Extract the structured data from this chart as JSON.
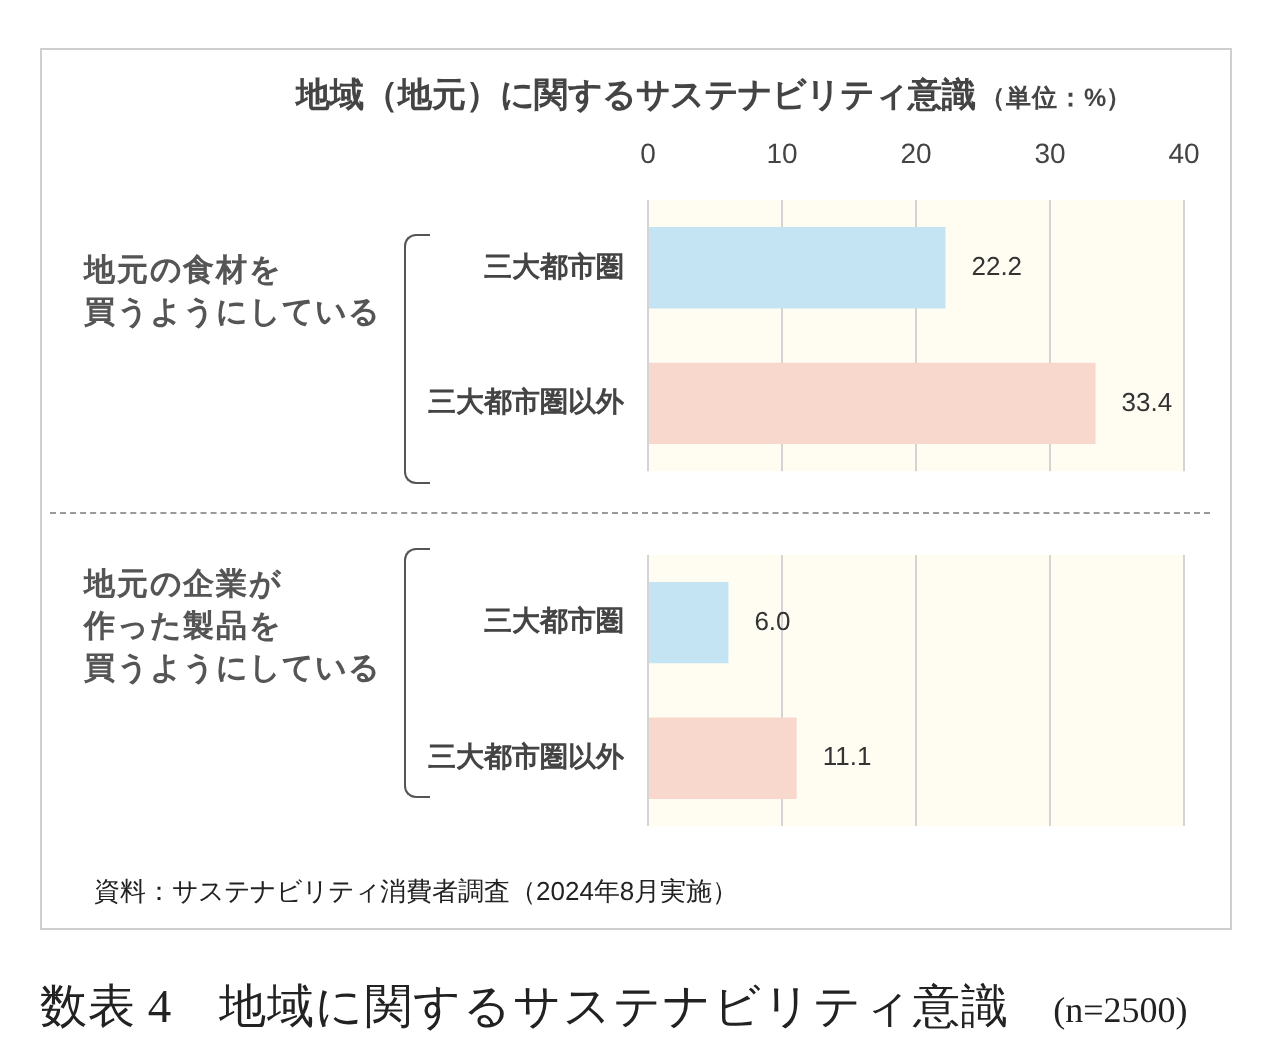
{
  "chart_data": [
    {
      "type": "bar",
      "orientation": "horizontal",
      "title": "地域（地元）に関するサステナビリティ意識",
      "subtitle": "（単位：%）",
      "ylabel": "地元の食材を買うようにしている",
      "categories": [
        "三大都市圏",
        "三大都市圏以外"
      ],
      "values": [
        22.2,
        33.4
      ],
      "colors": [
        "#c4e4f4",
        "#f8d8cc"
      ],
      "value_labels": [
        "22.2",
        "33.4"
      ],
      "xlim": [
        0,
        40
      ],
      "xticks": [
        0,
        10,
        20,
        30,
        40
      ],
      "grid": "x"
    },
    {
      "type": "bar",
      "orientation": "horizontal",
      "ylabel": "地元の企業が作った製品を買うようにしている",
      "categories": [
        "三大都市圏",
        "三大都市圏以外"
      ],
      "values": [
        6.0,
        11.1
      ],
      "colors": [
        "#c4e4f4",
        "#f8d8cc"
      ],
      "value_labels": [
        "6.0",
        "11.1"
      ],
      "xlim": [
        0,
        40
      ],
      "xticks": [
        0,
        10,
        20,
        30,
        40
      ],
      "grid": "x",
      "tick_labels": "y",
      "annotations": [
        "資料：サステナビリティ消費者調査（2024年8月実施）",
        "数表 4　地域に関するサステナビリティ意識",
        "(n=2500)"
      ]
    }
  ]
}
